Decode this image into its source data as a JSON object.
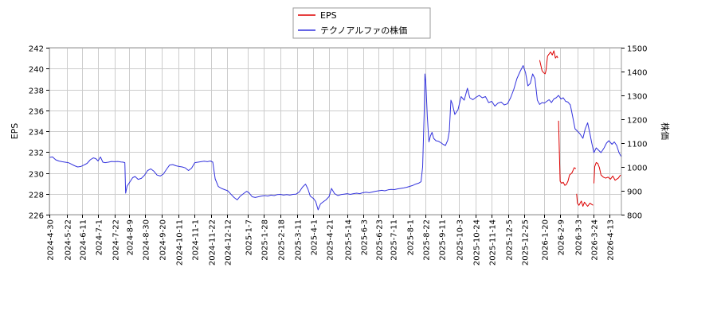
{
  "chart_data": {
    "type": "line",
    "title": "",
    "xlabel": "",
    "ylabel_left": "EPS",
    "ylabel_right": "株価",
    "ylim_left": [
      226,
      242
    ],
    "ylim_right": [
      800,
      1500
    ],
    "yticks_left": [
      226,
      228,
      230,
      232,
      234,
      236,
      238,
      240,
      242
    ],
    "yticks_right": [
      800,
      900,
      1000,
      1100,
      1200,
      1300,
      1400,
      1500
    ],
    "xlim": [
      "2024-04-30",
      "2026-04-28"
    ],
    "xticks": [
      "2024-4-30",
      "2024-5-22",
      "2024-6-11",
      "2024-7-1",
      "2024-7-22",
      "2024-8-9",
      "2024-8-30",
      "2024-9-20",
      "2024-10-11",
      "2024-11-1",
      "2024-11-22",
      "2024-12-12",
      "2025-1-7",
      "2025-1-28",
      "2025-2-18",
      "2025-3-11",
      "2025-4-1",
      "2025-4-21",
      "2025-5-14",
      "2025-6-3",
      "2025-6-23",
      "2025-7-11",
      "2025-8-1",
      "2025-8-22",
      "2025-9-11",
      "2025-10-3",
      "2025-10-24",
      "2025-11-14",
      "2025-12-5",
      "2025-12-25",
      "2026-1-20",
      "2026-2-9",
      "2026-3-3",
      "2026-3-24",
      "2026-4-13"
    ],
    "grid": true,
    "legend_position": "top-center",
    "colors": {
      "eps": "#dd0000",
      "price": "#3333dd",
      "grid": "#cccccc",
      "frame": "#999999"
    },
    "series": [
      {
        "name": "EPS",
        "axis": "left",
        "color": "#dd0000",
        "segments": [
          [
            [
              "2026-01-14",
              240.8
            ],
            [
              "2026-01-17",
              239.8
            ],
            [
              "2026-01-19",
              239.6
            ],
            [
              "2026-01-21",
              239.5
            ],
            [
              "2026-01-22",
              239.8
            ],
            [
              "2026-01-24",
              241.2
            ],
            [
              "2026-01-26",
              241.4
            ],
            [
              "2026-01-28",
              241.6
            ],
            [
              "2026-01-30",
              241.3
            ],
            [
              "2026-02-01",
              241.7
            ],
            [
              "2026-02-03",
              241.0
            ],
            [
              "2026-02-05",
              241.2
            ],
            [
              "2026-02-06",
              241.0
            ]
          ],
          [
            [
              "2026-02-07",
              235.0
            ],
            [
              "2026-02-09",
              229.2
            ],
            [
              "2026-02-11",
              229.0
            ],
            [
              "2026-02-13",
              229.1
            ],
            [
              "2026-02-15",
              228.8
            ],
            [
              "2026-02-17",
              228.9
            ],
            [
              "2026-02-19",
              229.2
            ],
            [
              "2026-02-21",
              229.8
            ],
            [
              "2026-02-24",
              230.0
            ],
            [
              "2026-02-27",
              230.5
            ],
            [
              "2026-03-01",
              230.4
            ]
          ],
          [
            [
              "2026-03-02",
              228.0
            ],
            [
              "2026-03-03",
              227.1
            ],
            [
              "2026-03-05",
              226.9
            ],
            [
              "2026-03-08",
              227.3
            ],
            [
              "2026-03-10",
              226.8
            ],
            [
              "2026-03-12",
              227.2
            ],
            [
              "2026-03-14",
              227.0
            ],
            [
              "2026-03-16",
              226.8
            ],
            [
              "2026-03-19",
              227.1
            ],
            [
              "2026-03-21",
              227.0
            ],
            [
              "2026-03-23",
              226.9
            ]
          ],
          [
            [
              "2026-03-24",
              229.0
            ],
            [
              "2026-03-25",
              230.6
            ],
            [
              "2026-03-27",
              231.0
            ],
            [
              "2026-03-29",
              230.9
            ],
            [
              "2026-03-31",
              230.5
            ],
            [
              "2026-04-02",
              229.8
            ],
            [
              "2026-04-05",
              229.6
            ],
            [
              "2026-04-08",
              229.5
            ],
            [
              "2026-04-11",
              229.6
            ],
            [
              "2026-04-14",
              229.4
            ],
            [
              "2026-04-17",
              229.7
            ],
            [
              "2026-04-20",
              229.3
            ],
            [
              "2026-04-24",
              229.5
            ],
            [
              "2026-04-27",
              229.8
            ]
          ]
        ]
      },
      {
        "name": "テクノアルファの株価",
        "axis": "right",
        "color": "#3333dd",
        "points": [
          [
            "2024-04-30",
            1040
          ],
          [
            "2024-05-04",
            1042
          ],
          [
            "2024-05-08",
            1030
          ],
          [
            "2024-05-12",
            1025
          ],
          [
            "2024-05-16",
            1022
          ],
          [
            "2024-05-20",
            1020
          ],
          [
            "2024-05-24",
            1018
          ],
          [
            "2024-05-28",
            1012
          ],
          [
            "2024-06-01",
            1005
          ],
          [
            "2024-06-05",
            1000
          ],
          [
            "2024-06-09",
            1002
          ],
          [
            "2024-06-13",
            1008
          ],
          [
            "2024-06-17",
            1015
          ],
          [
            "2024-06-21",
            1030
          ],
          [
            "2024-06-25",
            1038
          ],
          [
            "2024-06-28",
            1035
          ],
          [
            "2024-07-01",
            1025
          ],
          [
            "2024-07-04",
            1042
          ],
          [
            "2024-07-07",
            1020
          ],
          [
            "2024-07-10",
            1018
          ],
          [
            "2024-07-14",
            1020
          ],
          [
            "2024-07-18",
            1023
          ],
          [
            "2024-07-22",
            1022
          ],
          [
            "2024-07-26",
            1023
          ],
          [
            "2024-07-30",
            1021
          ],
          [
            "2024-08-02",
            1020
          ],
          [
            "2024-08-04",
            1018
          ],
          [
            "2024-08-05",
            890
          ],
          [
            "2024-08-07",
            920
          ],
          [
            "2024-08-10",
            935
          ],
          [
            "2024-08-14",
            955
          ],
          [
            "2024-08-17",
            960
          ],
          [
            "2024-08-21",
            948
          ],
          [
            "2024-08-25",
            952
          ],
          [
            "2024-08-29",
            965
          ],
          [
            "2024-09-02",
            985
          ],
          [
            "2024-09-06",
            992
          ],
          [
            "2024-09-10",
            982
          ],
          [
            "2024-09-14",
            966
          ],
          [
            "2024-09-18",
            962
          ],
          [
            "2024-09-22",
            970
          ],
          [
            "2024-09-26",
            990
          ],
          [
            "2024-09-30",
            1008
          ],
          [
            "2024-10-04",
            1010
          ],
          [
            "2024-10-08",
            1005
          ],
          [
            "2024-10-12",
            1002
          ],
          [
            "2024-10-16",
            1000
          ],
          [
            "2024-10-20",
            996
          ],
          [
            "2024-10-24",
            985
          ],
          [
            "2024-10-28",
            995
          ],
          [
            "2024-11-01",
            1018
          ],
          [
            "2024-11-05",
            1020
          ],
          [
            "2024-11-09",
            1022
          ],
          [
            "2024-11-13",
            1024
          ],
          [
            "2024-11-17",
            1022
          ],
          [
            "2024-11-21",
            1025
          ],
          [
            "2024-11-24",
            1020
          ],
          [
            "2024-11-27",
            950
          ],
          [
            "2024-12-01",
            918
          ],
          [
            "2024-12-05",
            910
          ],
          [
            "2024-12-09",
            905
          ],
          [
            "2024-12-13",
            900
          ],
          [
            "2024-12-17",
            886
          ],
          [
            "2024-12-21",
            872
          ],
          [
            "2024-12-25",
            862
          ],
          [
            "2024-12-29",
            878
          ],
          [
            "2025-01-02",
            888
          ],
          [
            "2025-01-06",
            898
          ],
          [
            "2025-01-09",
            892
          ],
          [
            "2025-01-13",
            875
          ],
          [
            "2025-01-17",
            872
          ],
          [
            "2025-01-21",
            875
          ],
          [
            "2025-01-25",
            878
          ],
          [
            "2025-01-29",
            880
          ],
          [
            "2025-02-02",
            878
          ],
          [
            "2025-02-06",
            882
          ],
          [
            "2025-02-10",
            880
          ],
          [
            "2025-02-14",
            884
          ],
          [
            "2025-02-18",
            885
          ],
          [
            "2025-02-22",
            882
          ],
          [
            "2025-02-26",
            884
          ],
          [
            "2025-03-02",
            882
          ],
          [
            "2025-03-06",
            885
          ],
          [
            "2025-03-10",
            886
          ],
          [
            "2025-03-14",
            895
          ],
          [
            "2025-03-18",
            915
          ],
          [
            "2025-03-22",
            928
          ],
          [
            "2025-03-25",
            908
          ],
          [
            "2025-03-28",
            878
          ],
          [
            "2025-04-01",
            868
          ],
          [
            "2025-04-04",
            855
          ],
          [
            "2025-04-07",
            820
          ],
          [
            "2025-04-10",
            845
          ],
          [
            "2025-04-14",
            855
          ],
          [
            "2025-04-17",
            862
          ],
          [
            "2025-04-21",
            876
          ],
          [
            "2025-04-24",
            910
          ],
          [
            "2025-04-28",
            888
          ],
          [
            "2025-05-02",
            880
          ],
          [
            "2025-05-06",
            884
          ],
          [
            "2025-05-10",
            886
          ],
          [
            "2025-05-14",
            888
          ],
          [
            "2025-05-18",
            885
          ],
          [
            "2025-05-22",
            888
          ],
          [
            "2025-05-26",
            890
          ],
          [
            "2025-05-30",
            888
          ],
          [
            "2025-06-03",
            892
          ],
          [
            "2025-06-07",
            894
          ],
          [
            "2025-06-11",
            892
          ],
          [
            "2025-06-15",
            895
          ],
          [
            "2025-06-19",
            898
          ],
          [
            "2025-06-23",
            900
          ],
          [
            "2025-06-27",
            902
          ],
          [
            "2025-07-01",
            900
          ],
          [
            "2025-07-05",
            904
          ],
          [
            "2025-07-09",
            906
          ],
          [
            "2025-07-13",
            905
          ],
          [
            "2025-07-17",
            908
          ],
          [
            "2025-07-21",
            910
          ],
          [
            "2025-07-25",
            912
          ],
          [
            "2025-07-29",
            915
          ],
          [
            "2025-08-01",
            918
          ],
          [
            "2025-08-05",
            922
          ],
          [
            "2025-08-09",
            928
          ],
          [
            "2025-08-13",
            932
          ],
          [
            "2025-08-16",
            938
          ],
          [
            "2025-08-18",
            1000
          ],
          [
            "2025-08-20",
            1220
          ],
          [
            "2025-08-21",
            1390
          ],
          [
            "2025-08-22",
            1360
          ],
          [
            "2025-08-24",
            1210
          ],
          [
            "2025-08-26",
            1105
          ],
          [
            "2025-08-28",
            1130
          ],
          [
            "2025-08-30",
            1145
          ],
          [
            "2025-09-01",
            1120
          ],
          [
            "2025-09-04",
            1110
          ],
          [
            "2025-09-07",
            1108
          ],
          [
            "2025-09-10",
            1102
          ],
          [
            "2025-09-13",
            1095
          ],
          [
            "2025-09-16",
            1090
          ],
          [
            "2025-09-19",
            1112
          ],
          [
            "2025-09-21",
            1150
          ],
          [
            "2025-09-23",
            1280
          ],
          [
            "2025-09-25",
            1262
          ],
          [
            "2025-09-28",
            1220
          ],
          [
            "2025-10-02",
            1240
          ],
          [
            "2025-10-06",
            1295
          ],
          [
            "2025-10-10",
            1280
          ],
          [
            "2025-10-14",
            1330
          ],
          [
            "2025-10-17",
            1290
          ],
          [
            "2025-10-21",
            1282
          ],
          [
            "2025-10-25",
            1292
          ],
          [
            "2025-10-29",
            1300
          ],
          [
            "2025-11-02",
            1290
          ],
          [
            "2025-11-06",
            1295
          ],
          [
            "2025-11-10",
            1270
          ],
          [
            "2025-11-14",
            1275
          ],
          [
            "2025-11-18",
            1255
          ],
          [
            "2025-11-22",
            1268
          ],
          [
            "2025-11-26",
            1272
          ],
          [
            "2025-11-30",
            1260
          ],
          [
            "2025-12-04",
            1265
          ],
          [
            "2025-12-08",
            1290
          ],
          [
            "2025-12-12",
            1325
          ],
          [
            "2025-12-16",
            1370
          ],
          [
            "2025-12-20",
            1400
          ],
          [
            "2025-12-24",
            1425
          ],
          [
            "2025-12-27",
            1395
          ],
          [
            "2025-12-30",
            1340
          ],
          [
            "2026-01-02",
            1350
          ],
          [
            "2026-01-05",
            1390
          ],
          [
            "2026-01-08",
            1370
          ],
          [
            "2026-01-11",
            1280
          ],
          [
            "2026-01-14",
            1262
          ],
          [
            "2026-01-17",
            1270
          ],
          [
            "2026-01-20",
            1268
          ],
          [
            "2026-01-23",
            1275
          ],
          [
            "2026-01-26",
            1282
          ],
          [
            "2026-01-29",
            1270
          ],
          [
            "2026-02-01",
            1285
          ],
          [
            "2026-02-04",
            1290
          ],
          [
            "2026-02-07",
            1300
          ],
          [
            "2026-02-10",
            1285
          ],
          [
            "2026-02-13",
            1290
          ],
          [
            "2026-02-16",
            1275
          ],
          [
            "2026-02-19",
            1272
          ],
          [
            "2026-02-22",
            1260
          ],
          [
            "2026-02-25",
            1210
          ],
          [
            "2026-02-28",
            1160
          ],
          [
            "2026-03-03",
            1150
          ],
          [
            "2026-03-06",
            1140
          ],
          [
            "2026-03-10",
            1120
          ],
          [
            "2026-03-13",
            1160
          ],
          [
            "2026-03-16",
            1185
          ],
          [
            "2026-03-19",
            1140
          ],
          [
            "2026-03-21",
            1105
          ],
          [
            "2026-03-24",
            1060
          ],
          [
            "2026-03-27",
            1080
          ],
          [
            "2026-03-30",
            1070
          ],
          [
            "2026-04-02",
            1060
          ],
          [
            "2026-04-06",
            1080
          ],
          [
            "2026-04-09",
            1100
          ],
          [
            "2026-04-12",
            1110
          ],
          [
            "2026-04-16",
            1095
          ],
          [
            "2026-04-19",
            1105
          ],
          [
            "2026-04-22",
            1090
          ],
          [
            "2026-04-25",
            1060
          ],
          [
            "2026-04-28",
            1042
          ]
        ]
      }
    ]
  }
}
